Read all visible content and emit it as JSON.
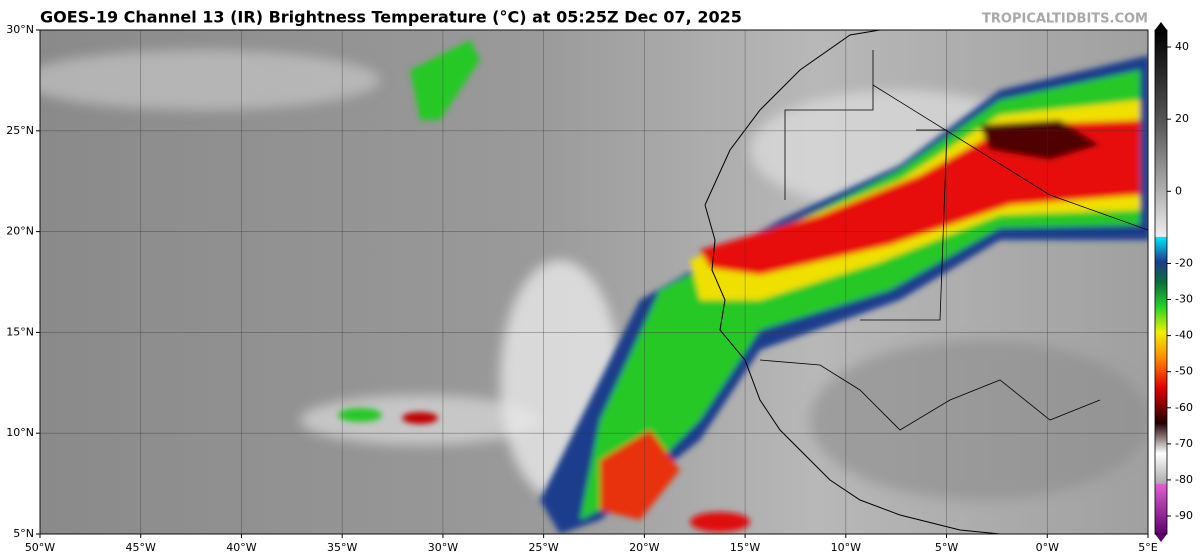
{
  "header": {
    "title": "GOES-19 Channel 13 (IR) Brightness Temperature (°C) at 05:25Z Dec 07, 2025",
    "watermark": "TROPICALTIDBITS.COM"
  },
  "map": {
    "xlim": [
      -50,
      5
    ],
    "ylim": [
      5,
      30
    ],
    "xticks": [
      {
        "value": -50,
        "label": "50°W"
      },
      {
        "value": -45,
        "label": "45°W"
      },
      {
        "value": -40,
        "label": "40°W"
      },
      {
        "value": -35,
        "label": "35°W"
      },
      {
        "value": -30,
        "label": "30°W"
      },
      {
        "value": -25,
        "label": "25°W"
      },
      {
        "value": -20,
        "label": "20°W"
      },
      {
        "value": -15,
        "label": "15°W"
      },
      {
        "value": -10,
        "label": "10°W"
      },
      {
        "value": -5,
        "label": "5°W"
      },
      {
        "value": 0,
        "label": "0°W"
      },
      {
        "value": 5,
        "label": "5°E"
      }
    ],
    "yticks": [
      {
        "value": 5,
        "label": "5°N"
      },
      {
        "value": 10,
        "label": "10°N"
      },
      {
        "value": 15,
        "label": "15°N"
      },
      {
        "value": 20,
        "label": "20°N"
      },
      {
        "value": 25,
        "label": "25°N"
      },
      {
        "value": 30,
        "label": "30°N"
      }
    ]
  },
  "colorbar": {
    "lim": [
      -90,
      40
    ],
    "ticks": [
      40,
      20,
      0,
      -20,
      -30,
      -40,
      -50,
      -60,
      -70,
      -80,
      -90
    ]
  }
}
